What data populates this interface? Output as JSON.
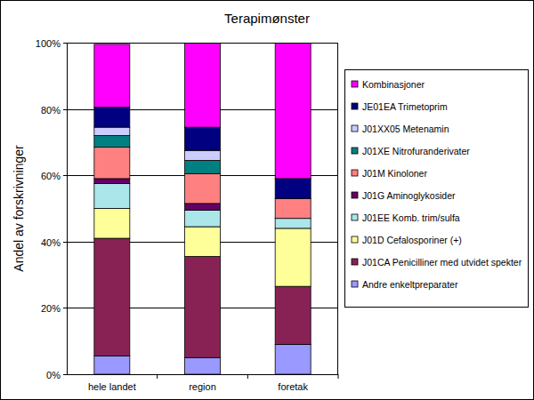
{
  "chart_data": {
    "type": "bar",
    "title": "Terapimønster",
    "y_label": "Andel av forskrivninger",
    "categories": [
      "hele landet",
      "region",
      "foretak"
    ],
    "stacked": true,
    "grid": true,
    "legend": "right",
    "ylim": [
      0,
      100
    ],
    "yticks": [
      {
        "value": 0,
        "label": "0%"
      },
      {
        "value": 20,
        "label": "20%"
      },
      {
        "value": 40,
        "label": "40%"
      },
      {
        "value": 60,
        "label": "60%"
      },
      {
        "value": 80,
        "label": "80%"
      },
      {
        "value": 100,
        "label": "100%"
      }
    ],
    "series": [
      {
        "name": "Andre enkeltpreparater",
        "color": "#9999ff",
        "values": [
          5.5,
          5,
          9
        ]
      },
      {
        "name": "J01CA Penicilliner med utvidet spekter",
        "color": "#882255",
        "values": [
          35.5,
          30.5,
          17.5
        ]
      },
      {
        "name": "J01D Cefalosporiner (+)",
        "color": "#ffff99",
        "values": [
          9,
          9,
          17.5
        ]
      },
      {
        "name": "J01EE Komb. trim/sulfa",
        "color": "#aae6ea",
        "values": [
          7.5,
          5,
          3
        ]
      },
      {
        "name": "J01G Aminoglykosider",
        "color": "#660066",
        "values": [
          1.5,
          2,
          0
        ]
      },
      {
        "name": "J01M Kinoloner",
        "color": "#ff8080",
        "values": [
          9.5,
          9,
          6
        ]
      },
      {
        "name": "J01XE Nitrofuranderivater",
        "color": "#008080",
        "values": [
          3.5,
          4,
          0
        ]
      },
      {
        "name": "J01XX05 Metenamin",
        "color": "#ccccff",
        "values": [
          2.5,
          3,
          0
        ]
      },
      {
        "name": "JE01EA Trimetoprim",
        "color": "#000080",
        "values": [
          6,
          7,
          6
        ]
      },
      {
        "name": "Kombinasjoner",
        "color": "#ff00ff",
        "values": [
          19,
          25.5,
          41
        ]
      }
    ]
  }
}
